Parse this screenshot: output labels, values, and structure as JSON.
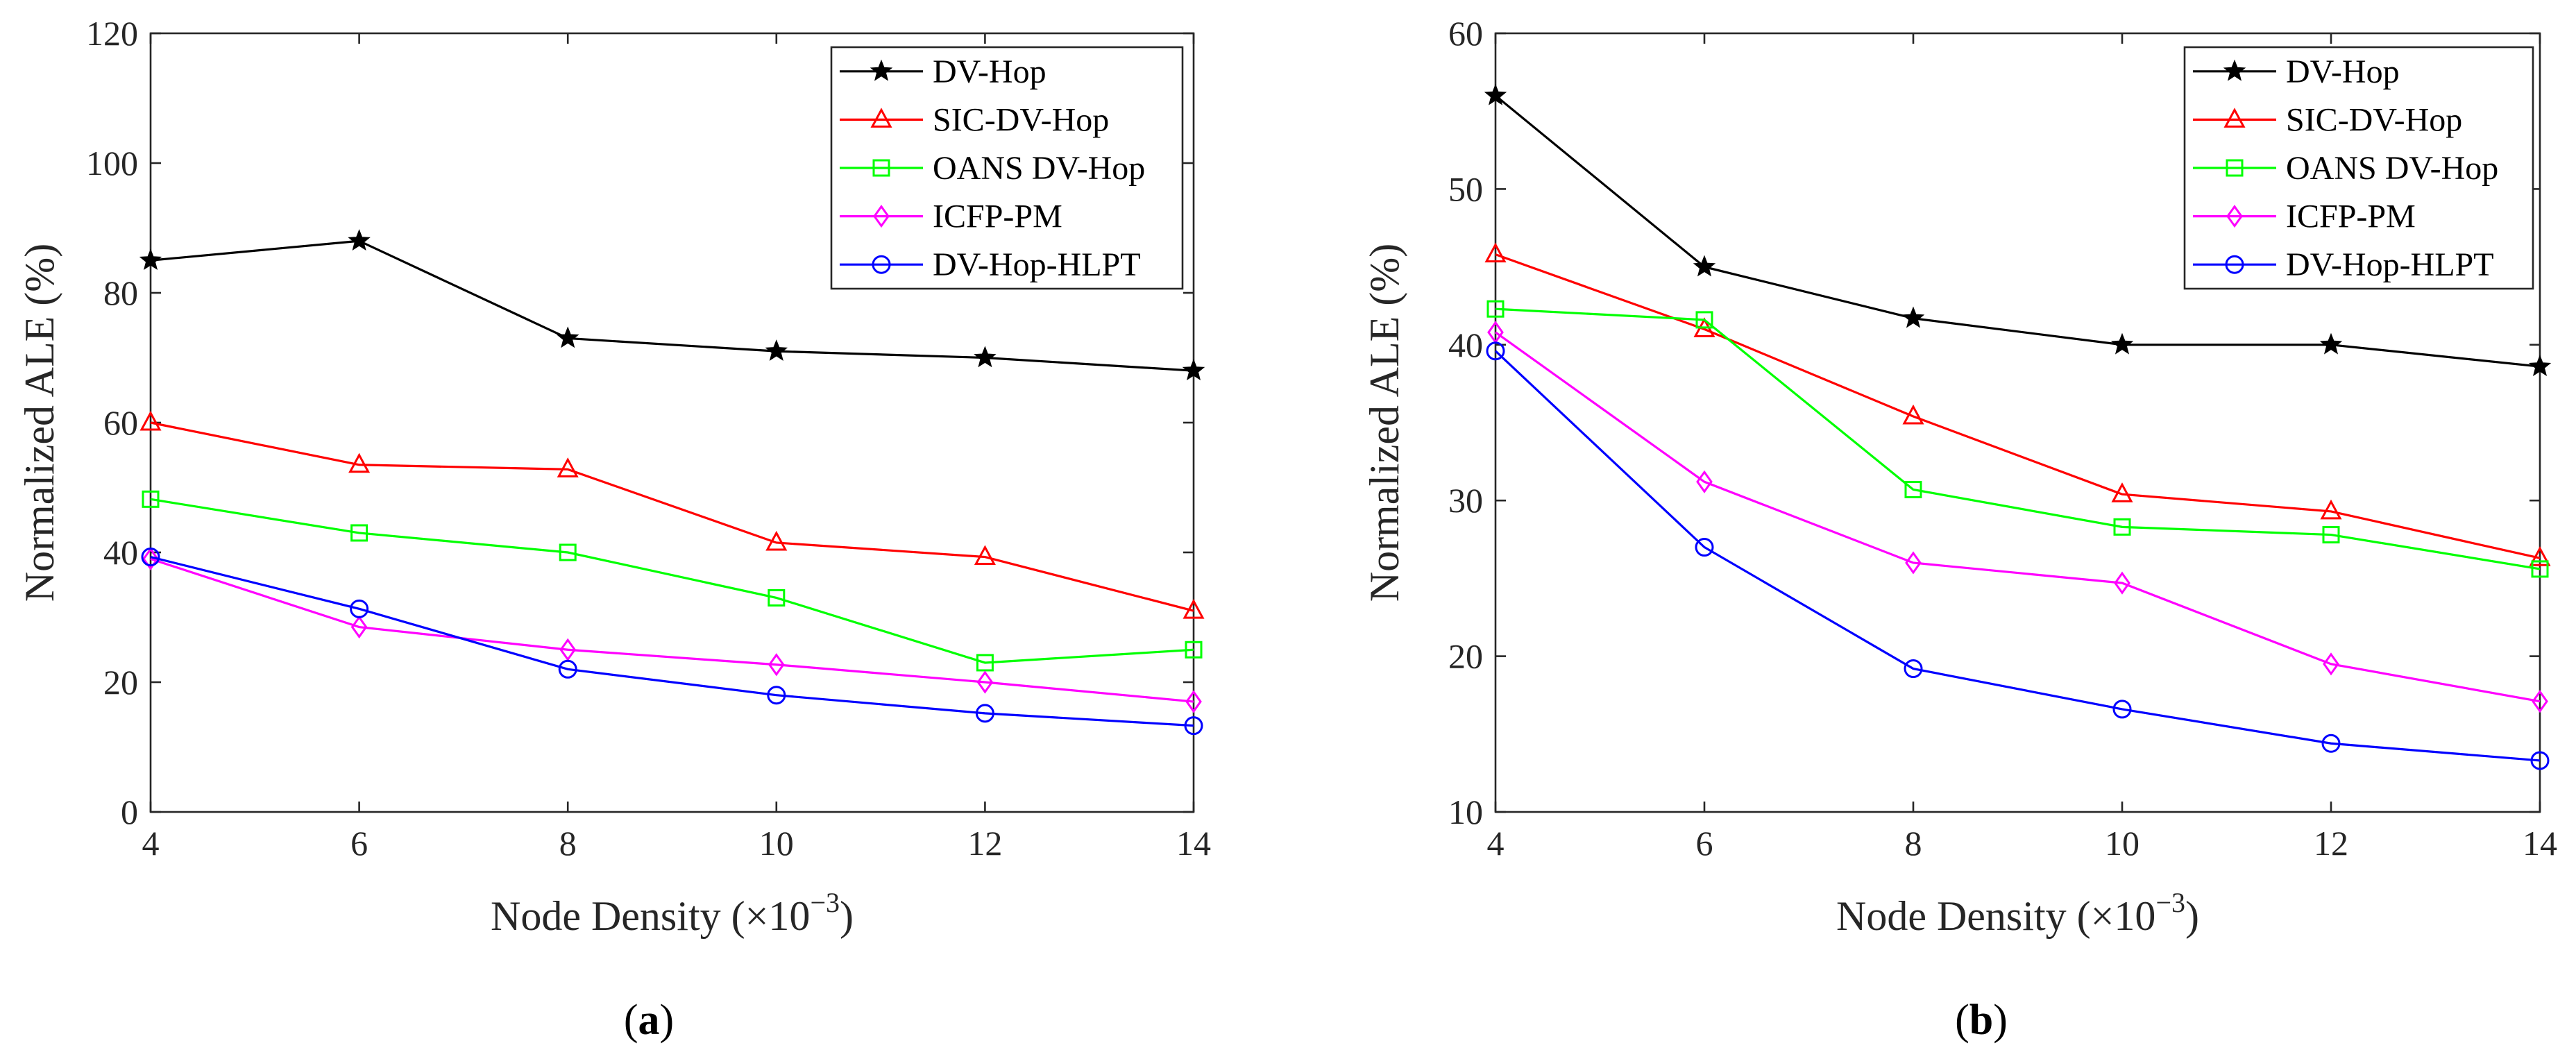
{
  "chart_data": [
    {
      "panel": "a",
      "caption_letter": "a",
      "type": "line",
      "xlabel": "Node Density (×10",
      "xlabel_exponent": "−3",
      "xlabel_suffix": ")",
      "ylabel": "Normalized ALE (%)",
      "xlim": [
        4,
        14
      ],
      "ylim": [
        0,
        120
      ],
      "xticks": [
        4,
        6,
        8,
        10,
        12,
        14
      ],
      "yticks": [
        0,
        20,
        40,
        60,
        80,
        100,
        120
      ],
      "x": [
        4,
        6,
        8,
        10,
        12,
        14
      ],
      "legend_position": "top-right",
      "series": [
        {
          "name": "DV-Hop",
          "color": "#000000",
          "marker": "star",
          "values": [
            85,
            88,
            73,
            71,
            70,
            68
          ]
        },
        {
          "name": "SIC-DV-Hop",
          "color": "#ff0000",
          "marker": "triangle",
          "values": [
            60,
            53.5,
            52.8,
            41.5,
            39.3,
            31
          ]
        },
        {
          "name": "OANS DV-Hop",
          "color": "#00ff00",
          "marker": "square",
          "values": [
            48.2,
            43,
            40,
            33,
            23,
            25
          ]
        },
        {
          "name": "ICFP-PM",
          "color": "#ff00ff",
          "marker": "diamond",
          "values": [
            39,
            28.5,
            25,
            22.7,
            20,
            17
          ]
        },
        {
          "name": "DV-Hop-HLPT",
          "color": "#0000ff",
          "marker": "circle",
          "values": [
            39.3,
            31.3,
            22,
            18,
            15.2,
            13.3
          ]
        }
      ]
    },
    {
      "panel": "b",
      "caption_letter": "b",
      "type": "line",
      "xlabel": "Node Density (×10",
      "xlabel_exponent": "−3",
      "xlabel_suffix": ")",
      "ylabel": "Normalized ALE (%)",
      "xlim": [
        4,
        14
      ],
      "ylim": [
        10,
        60
      ],
      "xticks": [
        4,
        6,
        8,
        10,
        12,
        14
      ],
      "yticks": [
        10,
        20,
        30,
        40,
        50,
        60
      ],
      "x": [
        4,
        6,
        8,
        10,
        12,
        14
      ],
      "legend_position": "top-right",
      "series": [
        {
          "name": "DV-Hop",
          "color": "#000000",
          "marker": "star",
          "values": [
            56,
            45,
            41.7,
            40,
            40,
            38.6
          ]
        },
        {
          "name": "SIC-DV-Hop",
          "color": "#ff0000",
          "marker": "triangle",
          "values": [
            45.8,
            41,
            35.4,
            30.4,
            29.3,
            26.3
          ]
        },
        {
          "name": "OANS DV-Hop",
          "color": "#00ff00",
          "marker": "square",
          "values": [
            42.3,
            41.6,
            30.7,
            28.3,
            27.8,
            25.6
          ]
        },
        {
          "name": "ICFP-PM",
          "color": "#ff00ff",
          "marker": "diamond",
          "values": [
            40.8,
            31.2,
            26,
            24.7,
            19.5,
            17.1
          ]
        },
        {
          "name": "DV-Hop-HLPT",
          "color": "#0000ff",
          "marker": "circle",
          "values": [
            39.6,
            27,
            19.2,
            16.6,
            14.4,
            13.3
          ]
        }
      ]
    }
  ]
}
